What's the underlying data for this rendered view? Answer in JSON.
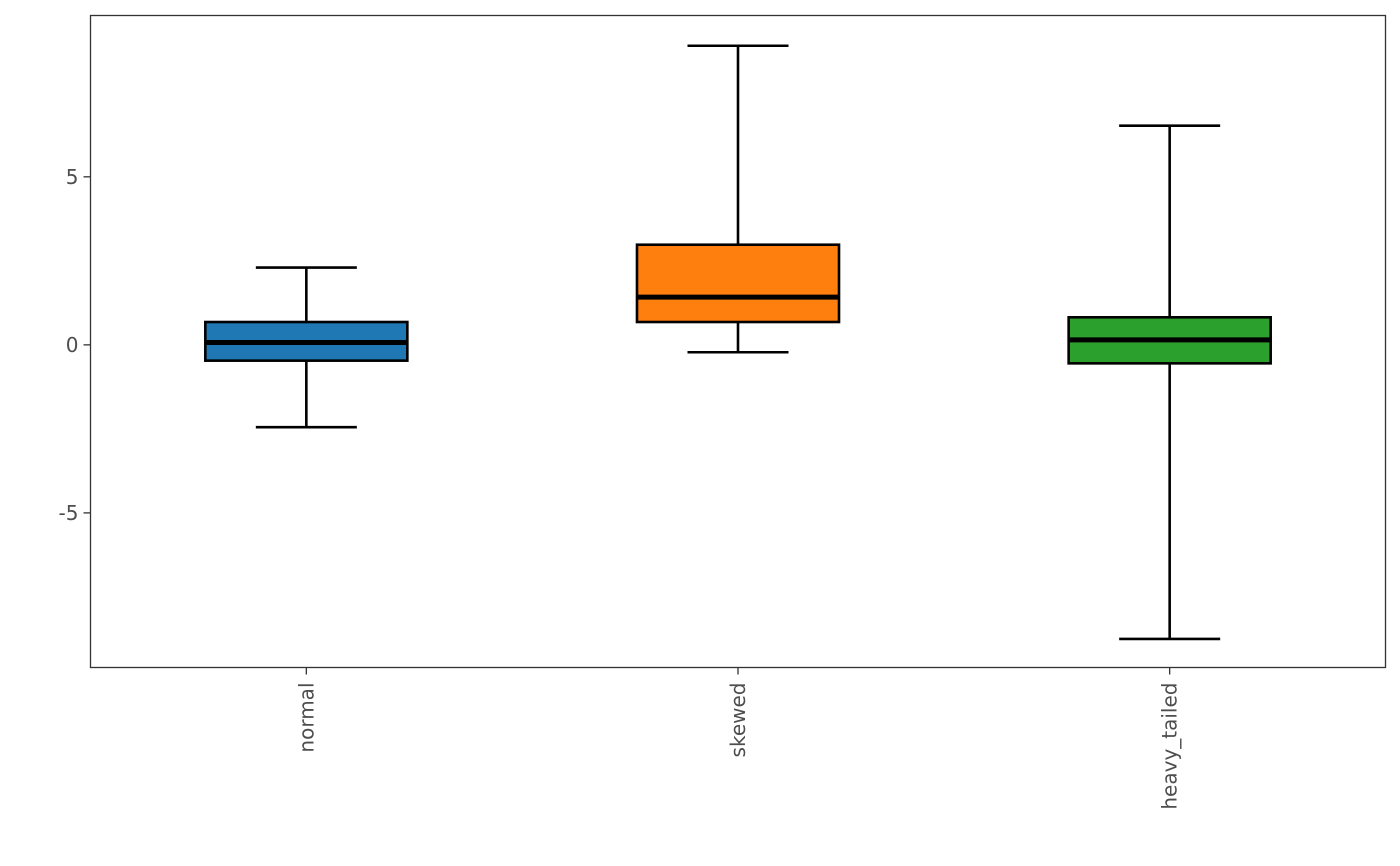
{
  "chart_data": {
    "type": "boxplot",
    "title": "",
    "xlabel": "",
    "ylabel": "",
    "categories": [
      "normal",
      "skewed",
      "heavy_tailed"
    ],
    "ylim": [
      -9.6,
      9.8
    ],
    "y_ticks": [
      -5,
      0,
      5
    ],
    "y_tick_labels": [
      "-5",
      "0",
      "5"
    ],
    "grid": false,
    "legend": "none",
    "x_label_rotation": "vertical",
    "boxes": [
      {
        "category": "normal",
        "whisker_low": -2.45,
        "q1": -0.47,
        "median": 0.07,
        "q3": 0.68,
        "whisker_high": 2.3,
        "color": "#1f77b4"
      },
      {
        "category": "skewed",
        "whisker_low": -0.22,
        "q1": 0.68,
        "median": 1.42,
        "q3": 2.98,
        "whisker_high": 8.9,
        "color": "#ff7f0e"
      },
      {
        "category": "heavy_tailed",
        "whisker_low": -8.75,
        "q1": -0.55,
        "median": 0.15,
        "q3": 0.82,
        "whisker_high": 6.52,
        "color": "#2ca02c"
      }
    ]
  }
}
